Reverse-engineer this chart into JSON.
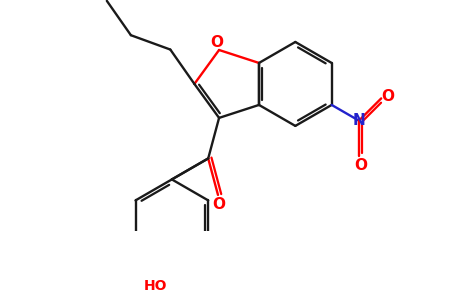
{
  "bg_color": "#ffffff",
  "bond_color": "#1a1a1a",
  "oxygen_color": "#ff0000",
  "nitrogen_color": "#2222cc",
  "lw": 1.7,
  "figsize": [
    4.76,
    2.92
  ],
  "dpi": 100,
  "xlim": [
    0,
    9
  ],
  "ylim": [
    0,
    5.5
  ]
}
